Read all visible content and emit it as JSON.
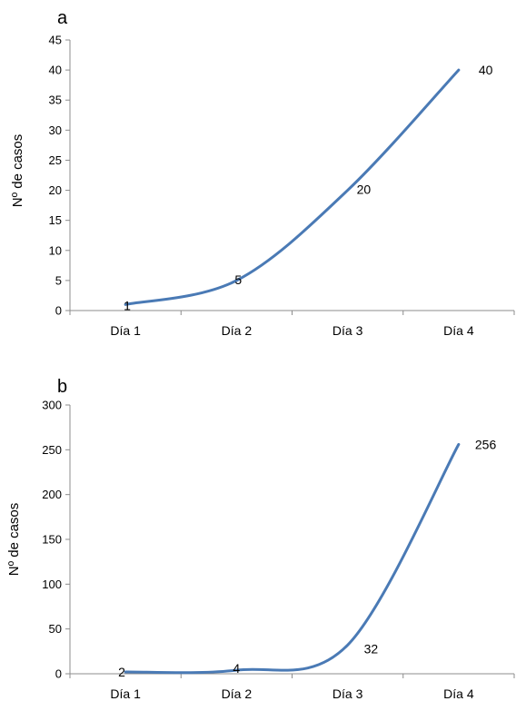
{
  "chart_data": [
    {
      "type": "line",
      "panel_label": "a",
      "title": "",
      "xlabel": "",
      "ylabel": "Nº de casos",
      "categories": [
        "Día 1",
        "Día 2",
        "Día 3",
        "Día 4"
      ],
      "values": [
        1,
        5,
        20,
        40
      ],
      "data_labels": [
        "1",
        "5",
        "20",
        "40"
      ],
      "ylim": [
        0,
        45
      ],
      "yticks": [
        "0",
        "5",
        "10",
        "15",
        "20",
        "25",
        "30",
        "35",
        "40",
        "45"
      ],
      "grid": false,
      "line_color": "#4a7ab5"
    },
    {
      "type": "line",
      "panel_label": "b",
      "title": "",
      "xlabel": "",
      "ylabel": "Nº de casos",
      "categories": [
        "Día 1",
        "Día 2",
        "Día 3",
        "Día 4"
      ],
      "values": [
        2,
        4,
        32,
        256
      ],
      "data_labels": [
        "2",
        "4",
        "32",
        "256"
      ],
      "ylim": [
        0,
        300
      ],
      "yticks": [
        "0",
        "50",
        "100",
        "150",
        "200",
        "250",
        "300"
      ],
      "grid": false,
      "line_color": "#4a7ab5"
    }
  ]
}
